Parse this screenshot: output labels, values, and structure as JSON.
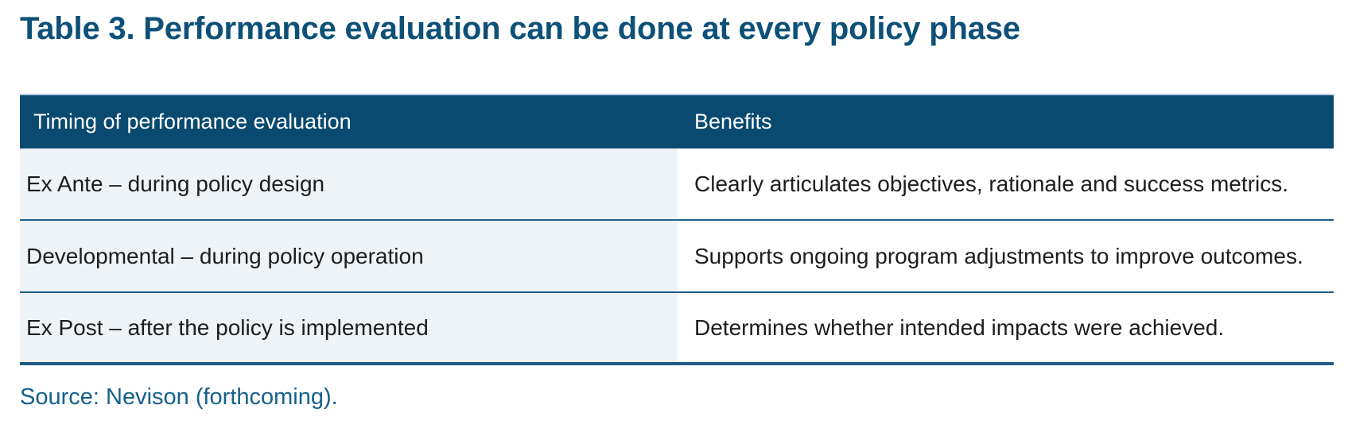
{
  "title": "Table 3. Performance evaluation can be done at every policy phase",
  "table": {
    "columns": [
      {
        "label": "Timing of performance evaluation"
      },
      {
        "label": "Benefits"
      }
    ],
    "rows": [
      {
        "timing": "Ex Ante – during policy design",
        "benefit": "Clearly articulates objectives, rationale and success metrics."
      },
      {
        "timing": "Developmental – during policy operation",
        "benefit": "Supports ongoing program adjustments to improve outcomes."
      },
      {
        "timing": "Ex Post – after the policy is implemented",
        "benefit": "Determines whether intended impacts were achieved."
      }
    ]
  },
  "source": "Source: Nevison (forthcoming).",
  "colors": {
    "title_color": "#0d5078",
    "header_bg": "#0a4a70",
    "header_text": "#ffffff",
    "rule_color": "#1e5c87",
    "light_edge": "#b7cfe1",
    "shade_bg": "#eef3f8",
    "body_text": "#1d1d1b",
    "source_color": "#16608d",
    "page_bg": "#ffffff"
  }
}
